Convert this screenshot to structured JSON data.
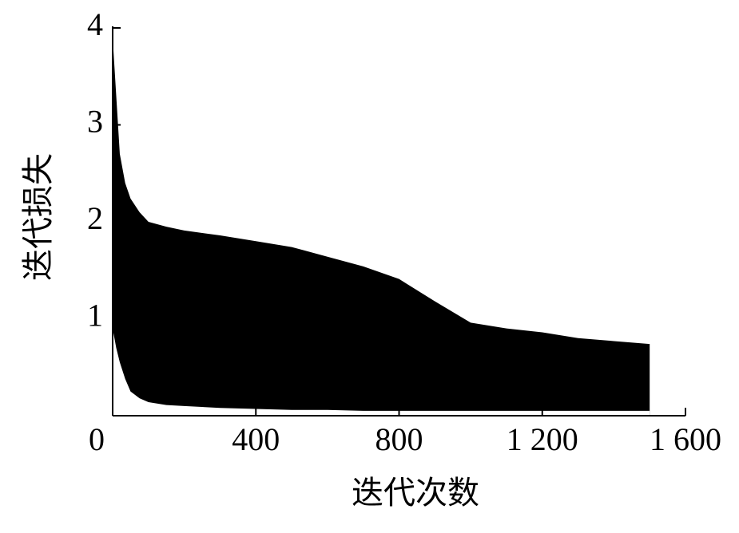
{
  "chart_data": {
    "type": "band",
    "x_label": "迭代次数",
    "y_label": "迭代损失",
    "x": [
      0,
      10,
      20,
      35,
      50,
      75,
      100,
      150,
      200,
      300,
      400,
      500,
      600,
      700,
      800,
      900,
      1000,
      1100,
      1200,
      1300,
      1400,
      1500
    ],
    "series": [
      {
        "color": "#000000",
        "values": [
          3.9,
          3.3,
          2.7,
          2.4,
          2.24,
          2.1,
          2.0,
          1.95,
          1.91,
          1.86,
          1.8,
          1.74,
          1.64,
          1.54,
          1.41,
          1.18,
          0.96,
          0.9,
          0.86,
          0.8,
          0.77,
          0.74
        ]
      },
      {
        "color": "#ffffff",
        "values": [
          0.9,
          0.7,
          0.55,
          0.38,
          0.25,
          0.18,
          0.14,
          0.11,
          0.1,
          0.08,
          0.07,
          0.06,
          0.06,
          0.05,
          0.05,
          0.05,
          0.05,
          0.05,
          0.05,
          0.05,
          0.05,
          0.05
        ]
      }
    ],
    "xlim": [
      0,
      1600
    ],
    "ylim": [
      0,
      4
    ],
    "xticks": [
      0,
      400,
      800,
      {
        "value": 1200,
        "label": "1 200"
      },
      {
        "value": 1600,
        "label": "1 600"
      }
    ],
    "yticks": [
      1,
      2,
      3,
      4
    ]
  }
}
